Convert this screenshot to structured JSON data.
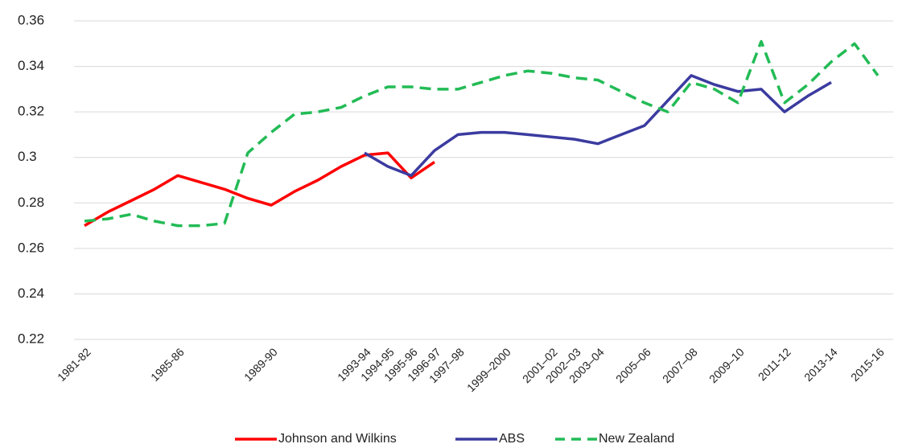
{
  "chart_data": {
    "type": "line",
    "categories": [
      "1981-82",
      null,
      null,
      null,
      "1985-86",
      null,
      null,
      null,
      "1989-90",
      null,
      null,
      null,
      "1993-94",
      "1994-95",
      "1995-96",
      "1996-97",
      "1997–98",
      null,
      "1999–2000",
      null,
      "2001–02",
      "2002–03",
      "2003–04",
      null,
      "2005–06",
      null,
      "2007–08",
      null,
      "2009–10",
      null,
      "2011-12",
      null,
      "2013-14",
      null,
      "2015-16"
    ],
    "series": [
      {
        "name": "Johnson and Wilkins",
        "color": "#ff0000",
        "dashed": false,
        "values": [
          0.27,
          0.276,
          0.281,
          0.286,
          0.292,
          0.289,
          0.286,
          0.282,
          0.279,
          0.285,
          0.29,
          0.296,
          0.301,
          0.302,
          0.291,
          0.298,
          null,
          null,
          null,
          null,
          null,
          null,
          null,
          null,
          null,
          null,
          null,
          null,
          null,
          null,
          null,
          null,
          null,
          null,
          null
        ]
      },
      {
        "name": "ABS",
        "color": "#3b3ba0",
        "dashed": false,
        "values": [
          null,
          null,
          null,
          null,
          null,
          null,
          null,
          null,
          null,
          null,
          null,
          null,
          0.302,
          0.296,
          0.292,
          0.303,
          0.31,
          0.311,
          0.311,
          0.31,
          0.309,
          0.308,
          0.306,
          0.31,
          0.314,
          0.325,
          0.336,
          0.332,
          0.329,
          0.33,
          0.32,
          0.327,
          0.333,
          null,
          null
        ]
      },
      {
        "name": "New Zealand",
        "color": "#22bb55",
        "dashed": true,
        "values": [
          0.272,
          0.273,
          0.275,
          0.272,
          0.27,
          0.27,
          0.271,
          0.302,
          0.311,
          0.319,
          0.32,
          0.322,
          0.327,
          0.331,
          0.331,
          0.33,
          0.33,
          0.333,
          0.336,
          0.338,
          0.337,
          0.335,
          0.334,
          0.329,
          0.324,
          0.32,
          0.333,
          0.33,
          0.324,
          0.351,
          0.324,
          0.332,
          0.342,
          0.35,
          0.336
        ]
      }
    ],
    "ylim": [
      0.22,
      0.36
    ],
    "yticks": [
      {
        "value": 0.22,
        "label": "0.22"
      },
      {
        "value": 0.24,
        "label": "0.24"
      },
      {
        "value": 0.26,
        "label": "0.26"
      },
      {
        "value": 0.28,
        "label": "0.28"
      },
      {
        "value": 0.3,
        "label": "0.3"
      },
      {
        "value": 0.32,
        "label": "0.32"
      },
      {
        "value": 0.34,
        "label": "0.34"
      },
      {
        "value": 0.36,
        "label": "0.36"
      }
    ],
    "grid": true,
    "legend": "bottom"
  }
}
